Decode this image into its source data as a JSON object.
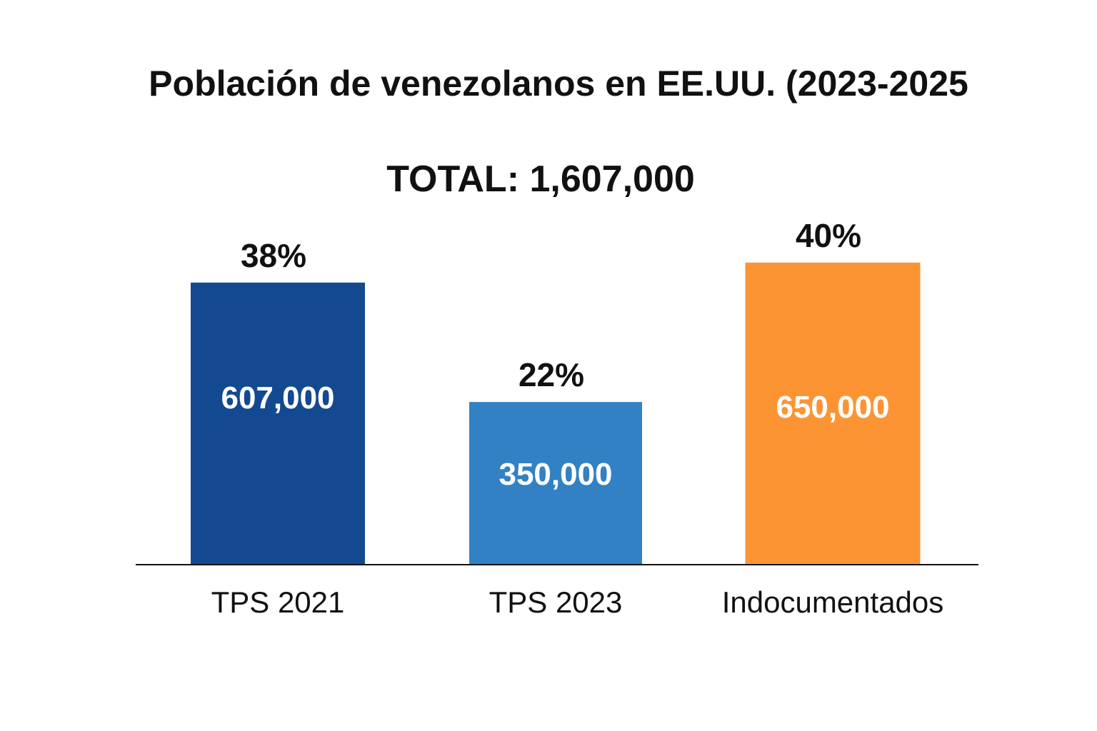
{
  "chart_data": {
    "type": "bar",
    "title": "Población de venezolanos en EE.UU. (2023-2025",
    "subtitle": "TOTAL: 1,607,000",
    "categories": [
      "TPS 2021",
      "TPS 2023",
      "Indocumentados"
    ],
    "values": [
      607000,
      350000,
      650000
    ],
    "value_labels": [
      "607,000",
      "350,000",
      "650,000"
    ],
    "percent_labels": [
      "38%",
      "22%",
      "40%"
    ],
    "colors": [
      "#134990",
      "#3281C4",
      "#FD9434"
    ],
    "ylim": [
      0,
      1000000
    ],
    "xlabel": "",
    "ylabel": "",
    "grid": false
  }
}
